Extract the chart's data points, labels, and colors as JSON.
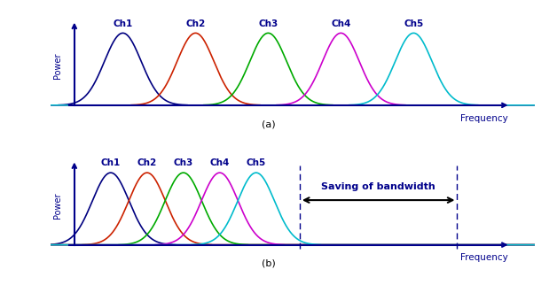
{
  "title_a": "(a)",
  "title_b": "(b)",
  "freq_label": "Frequency",
  "power_label": "Power r",
  "channels": [
    "Ch1",
    "Ch2",
    "Ch3",
    "Ch4",
    "Ch5"
  ],
  "colors": [
    "#000080",
    "#cc2200",
    "#00aa00",
    "#cc00cc",
    "#00bbcc"
  ],
  "fdm_centers": [
    1.0,
    2.5,
    4.0,
    5.5,
    7.0
  ],
  "fdm_sigma": 0.38,
  "ofdm_centers": [
    0.75,
    1.5,
    2.25,
    3.0,
    3.75
  ],
  "ofdm_sigma": 0.38,
  "axis_color": "#00008B",
  "label_color": "#00008B",
  "bg_color": "#ffffff",
  "saving_text": "Saving of bandwidth",
  "saving_arrow_color": "#000000",
  "saving_text_color": "#00008B",
  "dashed_line_color": "#00008B"
}
